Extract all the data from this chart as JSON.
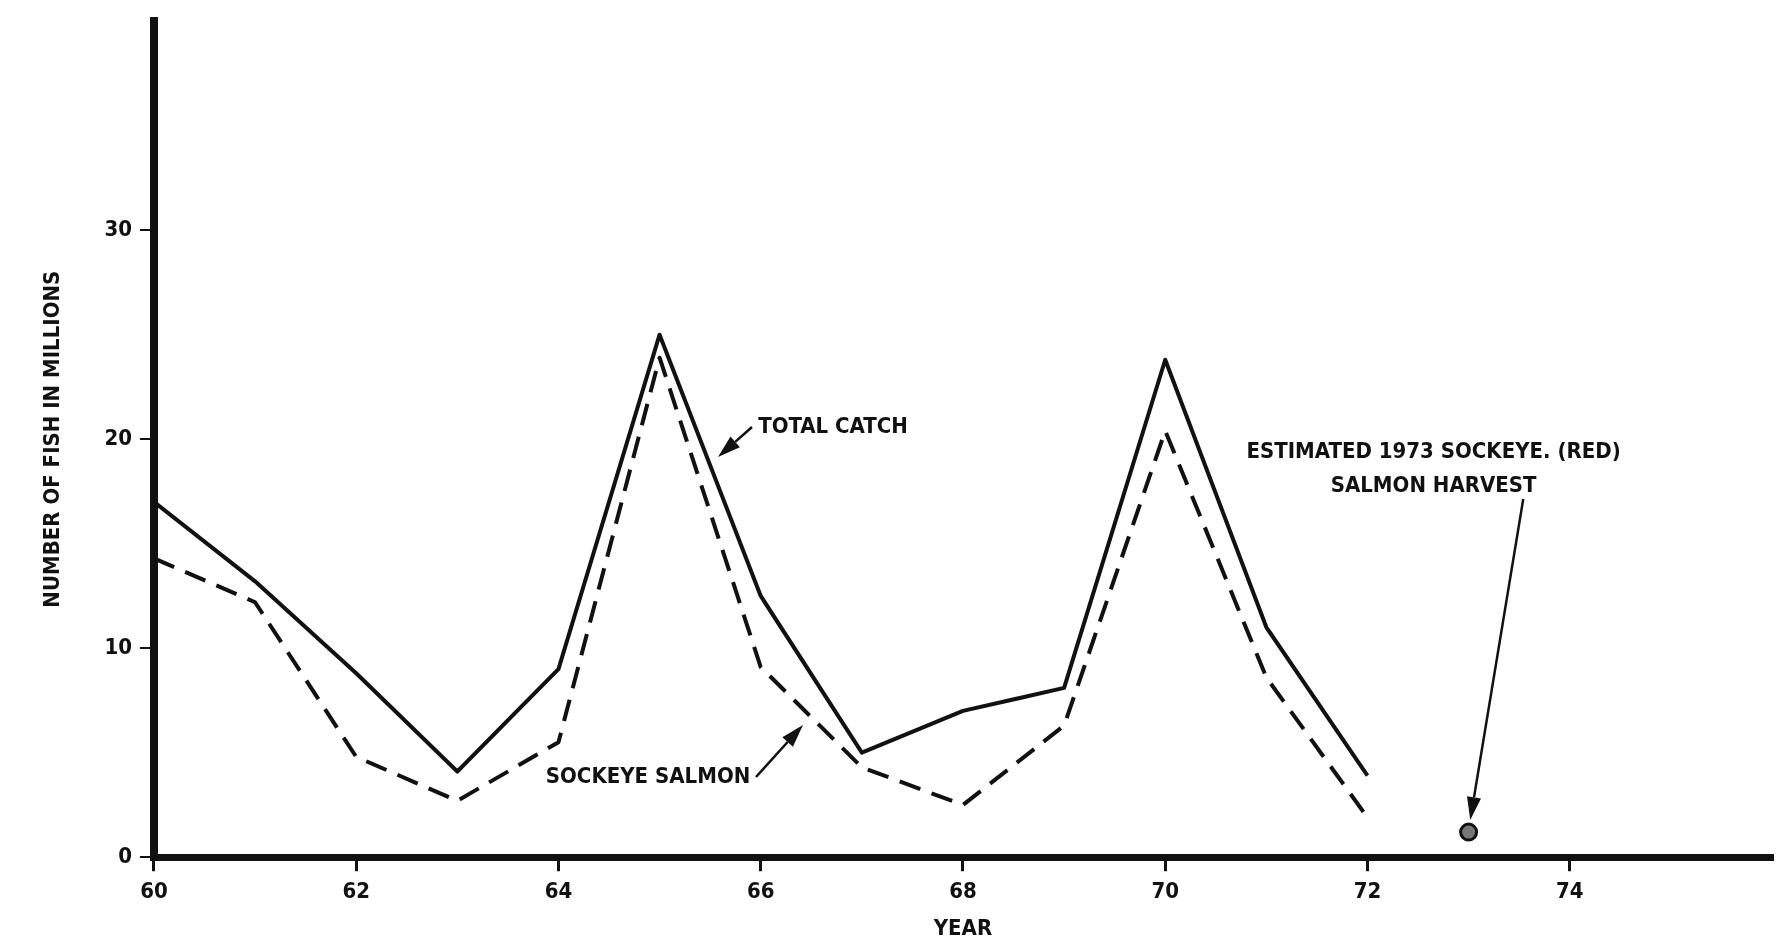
{
  "chart_data": {
    "type": "line",
    "xlabel": "YEAR",
    "ylabel": "NUMBER OF FISH IN MILLIONS",
    "x": [
      60,
      61,
      62,
      63,
      64,
      65,
      66,
      67,
      68,
      69,
      70,
      71,
      72
    ],
    "series": [
      {
        "name": "TOTAL CATCH",
        "color": "#111111",
        "line_style": "solid",
        "values": [
          17.0,
          13.2,
          8.8,
          4.1,
          9.0,
          25.0,
          12.5,
          5.0,
          7.0,
          8.1,
          23.8,
          11.0,
          3.9
        ]
      },
      {
        "name": "SOCKEYE SALMON",
        "color": "#111111",
        "line_style": "dashed",
        "values": [
          14.3,
          12.2,
          4.8,
          2.7,
          5.5,
          23.9,
          9.1,
          4.3,
          2.5,
          6.3,
          20.4,
          8.6,
          1.9
        ]
      },
      {
        "type": "scatter",
        "color": "#111111",
        "marker": "circle",
        "x": [
          73
        ],
        "values": [
          1.2
        ]
      }
    ],
    "annotations": [
      "ESTIMATED 1973 SOCKEYE. (RED) SALMON HARVEST"
    ],
    "xlim": [
      60,
      76
    ],
    "xticks": [
      60,
      62,
      64,
      66,
      68,
      70,
      72,
      74
    ],
    "ylim": [
      0,
      40
    ],
    "yticks": [
      0,
      10,
      20,
      30
    ],
    "grid": false,
    "marker": "none"
  }
}
